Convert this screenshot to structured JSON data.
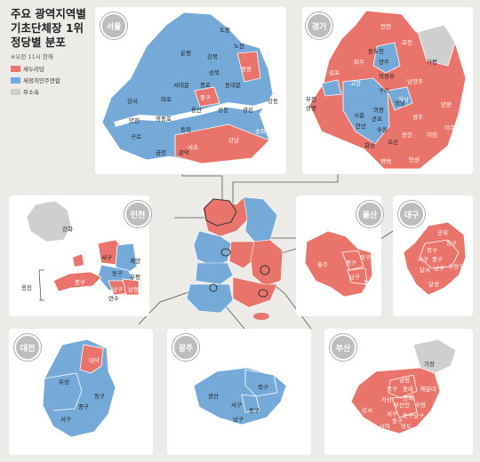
{
  "title_lines": [
    "주요 광역지역별",
    "기초단체장 1위",
    "정당별 분포"
  ],
  "subtitle": "※오전 11시 현재",
  "legend": [
    {
      "label": "새누리당",
      "color": "#e8746c"
    },
    {
      "label": "새정치민주연합",
      "color": "#74a9d8"
    },
    {
      "label": "무소속",
      "color": "#cfcfcf"
    }
  ],
  "colors": {
    "red": "#e8746c",
    "blue": "#74a9d8",
    "gray": "#cfcfcf",
    "background": "#ecebe7"
  },
  "regions": {
    "seoul": {
      "name": "서울",
      "labels": [
        "도봉",
        "노원",
        "은평",
        "강북",
        "성북",
        "중랑",
        "서대문",
        "종로",
        "동대문",
        "중구",
        "강서",
        "마포",
        "용산",
        "성동",
        "광진",
        "강동",
        "양천",
        "영등포",
        "동작",
        "구로",
        "서초",
        "강남",
        "송파",
        "금천",
        "관악"
      ]
    },
    "gyeonggi": {
      "name": "경기",
      "labels": [
        "연천",
        "포천",
        "동두천",
        "파주",
        "양주",
        "가평",
        "김포",
        "고양",
        "의정부",
        "구리",
        "남양주",
        "하남",
        "부천",
        "광명",
        "시흥",
        "안산",
        "군포",
        "의왕",
        "수원",
        "성남",
        "광주",
        "양평",
        "여주",
        "이천",
        "용인",
        "오산",
        "화성",
        "평택",
        "안성"
      ]
    },
    "incheon": {
      "name": "인천",
      "labels": [
        "강화",
        "서구",
        "계양",
        "동구",
        "부평",
        "중구",
        "남구",
        "남동",
        "연수",
        "옹진"
      ]
    },
    "ulsan": {
      "name": "울산",
      "labels": [
        "울주",
        "중구",
        "북구",
        "남구",
        "동구"
      ]
    },
    "daegu": {
      "name": "대구",
      "labels": [
        "군위",
        "동구",
        "북구",
        "서구",
        "중구",
        "남구",
        "수성구",
        "달서",
        "달성"
      ]
    },
    "daejeon": {
      "name": "대전",
      "labels": [
        "대덕",
        "유성",
        "동구",
        "중구",
        "서구"
      ]
    },
    "gwangju": {
      "name": "광주",
      "labels": [
        "북구",
        "광산",
        "서구",
        "동구",
        "남구"
      ]
    },
    "busan": {
      "name": "부산",
      "labels": [
        "기장",
        "금정",
        "북구",
        "동래",
        "연제",
        "해운대",
        "사상",
        "부산진",
        "수영",
        "강서",
        "남구",
        "서구",
        "사하",
        "영도",
        "동구",
        "중구"
      ]
    }
  }
}
